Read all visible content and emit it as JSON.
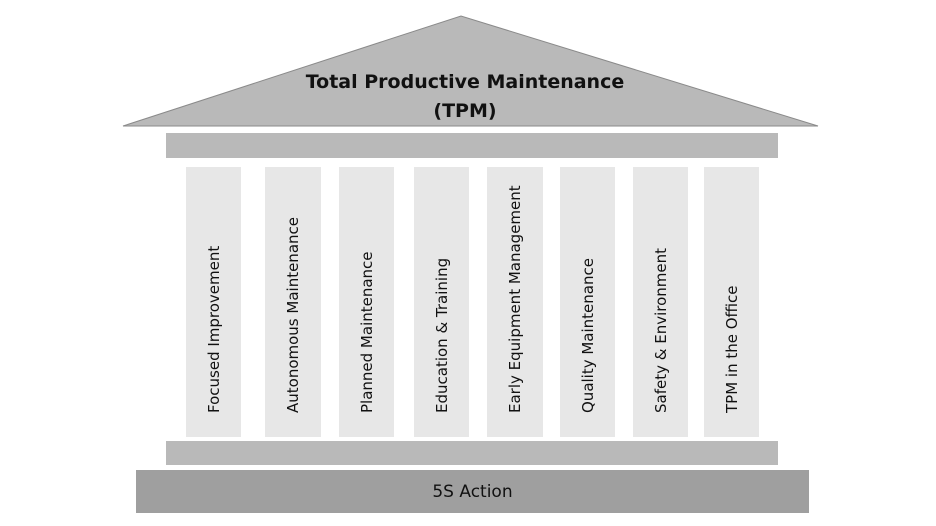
{
  "roof": {
    "title_line1": "Total Productive Maintenance",
    "title_line2": "(TPM)"
  },
  "pillars": [
    "Focused Improvement",
    "Autonomous Maintenance",
    "Planned Maintenance",
    "Education & Training",
    "Early Equipment Management",
    "Quality Maintenance",
    "Safety & Environment",
    "TPM in the Office"
  ],
  "base": {
    "label": "5S Action"
  },
  "colors": {
    "roof": "#b9b9b9",
    "beam": "#b9b9b9",
    "pillar": "#e7e7e7",
    "base": "#9f9f9f",
    "text": "#111111"
  }
}
